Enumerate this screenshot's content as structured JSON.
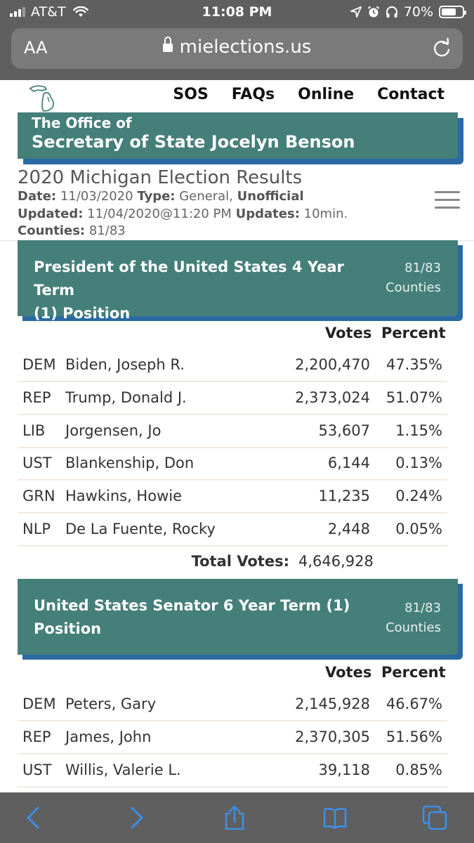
{
  "status_bar": {
    "carrier": "AT&T",
    "time": "11:08 PM",
    "battery": "70%",
    "battery_level": 0.7
  },
  "browser": {
    "text_size_button": "AA",
    "url": "mielections.us"
  },
  "nav": {
    "items": [
      "SOS",
      "FAQs",
      "Online",
      "Contact"
    ]
  },
  "office": {
    "line1": "The Office of",
    "line2": "Secretary of State Jocelyn Benson"
  },
  "results": {
    "title": "2020 Michigan Election Results",
    "date_label": "Date:",
    "date_value": "11/03/2020",
    "type_label": "Type:",
    "type_value": "General,",
    "unofficial": "Unofficial",
    "updated_label": "Updated:",
    "updated_value": "11/04/2020@11:20 PM",
    "updates_label": "Updates:",
    "updates_value": "10min.",
    "counties_label": "Counties:",
    "counties_value": "81/83"
  },
  "columns": {
    "votes": "Votes",
    "percent": "Percent"
  },
  "races": [
    {
      "title_line1": "President of the United States 4 Year Term",
      "title_line2": "(1) Position",
      "counties_count": "81/83",
      "counties_word": "Counties",
      "candidates": [
        {
          "party": "DEM",
          "name": "Biden, Joseph R.",
          "votes": "2,200,470",
          "percent": "47.35%"
        },
        {
          "party": "REP",
          "name": "Trump, Donald J.",
          "votes": "2,373,024",
          "percent": "51.07%"
        },
        {
          "party": "LIB",
          "name": "Jorgensen, Jo",
          "votes": "53,607",
          "percent": "1.15%"
        },
        {
          "party": "UST",
          "name": "Blankenship, Don",
          "votes": "6,144",
          "percent": "0.13%"
        },
        {
          "party": "GRN",
          "name": "Hawkins, Howie",
          "votes": "11,235",
          "percent": "0.24%"
        },
        {
          "party": "NLP",
          "name": "De La Fuente, Rocky",
          "votes": "2,448",
          "percent": "0.05%"
        }
      ],
      "total_label": "Total Votes:",
      "total_value": "4,646,928"
    },
    {
      "title_line1": "United States Senator 6 Year Term (1)",
      "title_line2": "Position",
      "counties_count": "81/83",
      "counties_word": "Counties",
      "candidates": [
        {
          "party": "DEM",
          "name": "Peters, Gary",
          "votes": "2,145,928",
          "percent": "46.67%"
        },
        {
          "party": "REP",
          "name": "James, John",
          "votes": "2,370,305",
          "percent": "51.56%"
        },
        {
          "party": "UST",
          "name": "Willis, Valerie L.",
          "votes": "39,118",
          "percent": "0.85%"
        }
      ]
    }
  ],
  "colors": {
    "banner": "#457f79",
    "banner_shadow": "#2a6aa3",
    "ios_chrome": "#5f5f5f",
    "ios_blue": "#3e8fe8"
  },
  "toolbar": {
    "icons": [
      "back-icon",
      "forward-icon",
      "share-icon",
      "bookmarks-icon",
      "tabs-icon"
    ]
  }
}
